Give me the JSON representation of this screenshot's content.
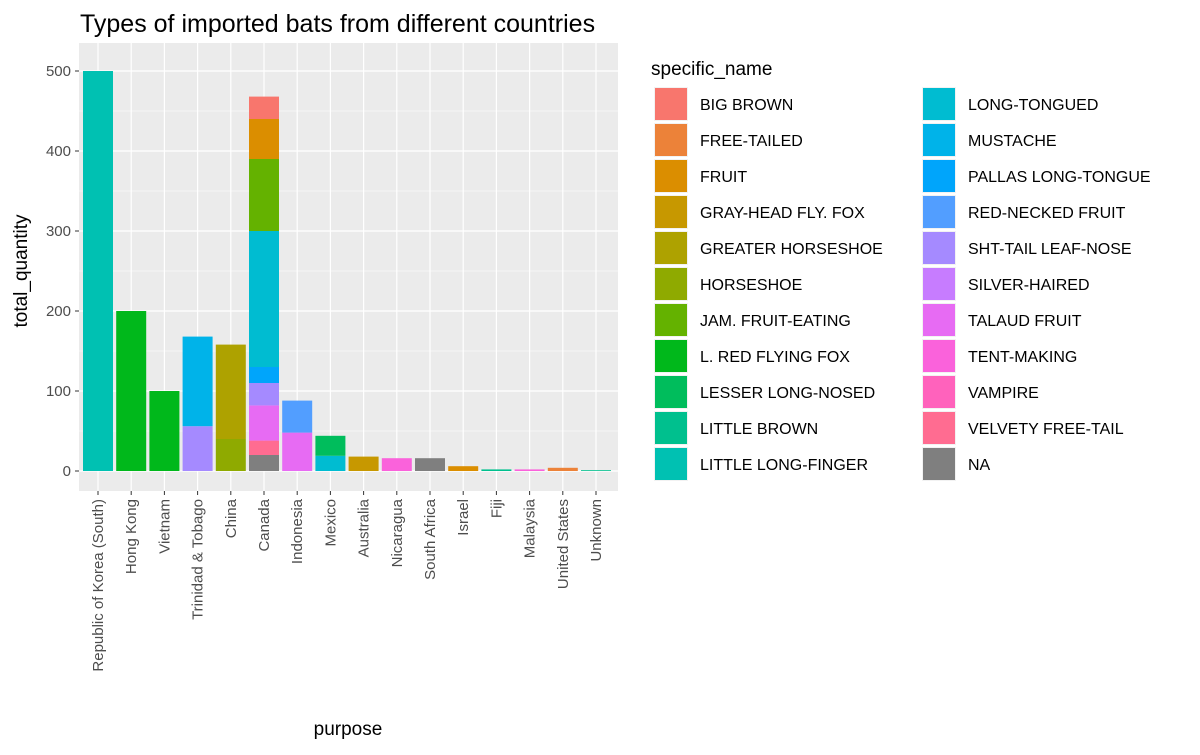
{
  "chart_data": {
    "type": "bar",
    "stacked": true,
    "title": "Types of imported bats from different countries",
    "xlabel": "purpose",
    "ylabel": "total_quantity",
    "ylim": [
      0,
      525
    ],
    "yticks": [
      0,
      100,
      200,
      300,
      400,
      500
    ],
    "grid": true,
    "legend": {
      "title": "specific_name",
      "position": "right",
      "columns": 2
    },
    "categories": [
      "Republic of Korea (South)",
      "Hong Kong",
      "Vietnam",
      "Trinidad & Tobago",
      "China",
      "Canada",
      "Indonesia",
      "Mexico",
      "Australia",
      "Nicaragua",
      "South Africa",
      "Israel",
      "Fiji",
      "Malaysia",
      "United States",
      "Unknown"
    ],
    "series": [
      {
        "name": "BIG BROWN",
        "color": "#F8766D",
        "values": [
          0,
          0,
          0,
          0,
          0,
          28,
          0,
          0,
          0,
          0,
          0,
          0,
          0,
          0,
          0,
          0
        ]
      },
      {
        "name": "FREE-TAILED",
        "color": "#EC8239",
        "values": [
          0,
          0,
          0,
          0,
          0,
          0,
          0,
          0,
          0,
          0,
          0,
          0,
          0,
          0,
          4,
          0
        ]
      },
      {
        "name": "FRUIT",
        "color": "#DB8E00",
        "values": [
          0,
          0,
          0,
          0,
          0,
          50,
          0,
          0,
          0,
          0,
          0,
          6,
          0,
          0,
          0,
          0
        ]
      },
      {
        "name": "GRAY-HEAD FLY. FOX",
        "color": "#C79800",
        "values": [
          0,
          0,
          0,
          0,
          0,
          0,
          0,
          0,
          18,
          0,
          0,
          0,
          0,
          0,
          0,
          0
        ]
      },
      {
        "name": "GREATER HORSESHOE",
        "color": "#AEA200",
        "values": [
          0,
          0,
          0,
          0,
          118,
          0,
          0,
          0,
          0,
          0,
          0,
          0,
          0,
          0,
          0,
          0
        ]
      },
      {
        "name": "HORSESHOE",
        "color": "#8FAA00",
        "values": [
          0,
          0,
          0,
          0,
          40,
          0,
          0,
          0,
          0,
          0,
          0,
          0,
          0,
          0,
          0,
          0
        ]
      },
      {
        "name": "JAM. FRUIT-EATING",
        "color": "#64B200",
        "values": [
          0,
          0,
          0,
          0,
          0,
          90,
          0,
          0,
          0,
          0,
          0,
          0,
          0,
          0,
          0,
          0
        ]
      },
      {
        "name": "L. RED FLYING FOX",
        "color": "#00B81B",
        "values": [
          0,
          200,
          100,
          0,
          0,
          0,
          0,
          0,
          0,
          0,
          0,
          0,
          0,
          0,
          0,
          0
        ]
      },
      {
        "name": "LESSER LONG-NOSED",
        "color": "#00BD5C",
        "values": [
          0,
          0,
          0,
          0,
          0,
          0,
          0,
          25,
          0,
          0,
          0,
          0,
          0,
          0,
          0,
          0
        ]
      },
      {
        "name": "LITTLE BROWN",
        "color": "#00C08E",
        "values": [
          0,
          0,
          0,
          0,
          0,
          0,
          0,
          0,
          0,
          0,
          0,
          0,
          2,
          0,
          0,
          1
        ]
      },
      {
        "name": "LITTLE LONG-FINGER",
        "color": "#00C1B2",
        "values": [
          500,
          0,
          0,
          0,
          0,
          0,
          0,
          0,
          0,
          0,
          0,
          0,
          0,
          0,
          0,
          0
        ]
      },
      {
        "name": "LONG-TONGUED",
        "color": "#00BCD1",
        "values": [
          0,
          0,
          0,
          0,
          0,
          170,
          0,
          19,
          0,
          0,
          0,
          0,
          0,
          0,
          0,
          0
        ]
      },
      {
        "name": "MUSTACHE",
        "color": "#00B3E9",
        "values": [
          0,
          0,
          0,
          112,
          0,
          0,
          0,
          0,
          0,
          0,
          0,
          0,
          0,
          0,
          0,
          0
        ]
      },
      {
        "name": "PALLAS LONG-TONGUE",
        "color": "#00A5FB",
        "values": [
          0,
          0,
          0,
          0,
          0,
          20,
          0,
          0,
          0,
          0,
          0,
          0,
          0,
          0,
          0,
          0
        ]
      },
      {
        "name": "RED-NECKED FRUIT",
        "color": "#529EFF",
        "values": [
          0,
          0,
          0,
          0,
          0,
          0,
          40,
          0,
          0,
          0,
          0,
          0,
          0,
          0,
          0,
          0
        ]
      },
      {
        "name": "SHT-TAIL LEAF-NOSE",
        "color": "#A58AFF",
        "values": [
          0,
          0,
          0,
          56,
          0,
          28,
          0,
          0,
          0,
          0,
          0,
          0,
          0,
          0,
          0,
          0
        ]
      },
      {
        "name": "SILVER-HAIRED",
        "color": "#C77CFF",
        "values": [
          0,
          0,
          0,
          0,
          0,
          0,
          0,
          0,
          0,
          0,
          0,
          0,
          0,
          0,
          0,
          0
        ]
      },
      {
        "name": "TALAUD FRUIT",
        "color": "#E76BF3",
        "values": [
          0,
          0,
          0,
          0,
          0,
          44,
          48,
          0,
          0,
          0,
          0,
          0,
          0,
          0,
          0,
          0
        ]
      },
      {
        "name": "TENT-MAKING",
        "color": "#FA62DB",
        "values": [
          0,
          0,
          0,
          0,
          0,
          0,
          0,
          0,
          0,
          16,
          0,
          0,
          0,
          2,
          0,
          0
        ]
      },
      {
        "name": "VAMPIRE",
        "color": "#FF62BC",
        "values": [
          0,
          0,
          0,
          0,
          0,
          0,
          0,
          0,
          0,
          0,
          0,
          0,
          0,
          0,
          0,
          0
        ]
      },
      {
        "name": "VELVETY FREE-TAIL",
        "color": "#FF6C91",
        "values": [
          0,
          0,
          0,
          0,
          0,
          18,
          0,
          0,
          0,
          0,
          0,
          0,
          0,
          0,
          0,
          0
        ]
      },
      {
        "name": "NA",
        "color": "#7F7F7F",
        "values": [
          0,
          0,
          0,
          0,
          0,
          20,
          0,
          0,
          0,
          0,
          16,
          0,
          0,
          0,
          0,
          0
        ]
      }
    ]
  }
}
